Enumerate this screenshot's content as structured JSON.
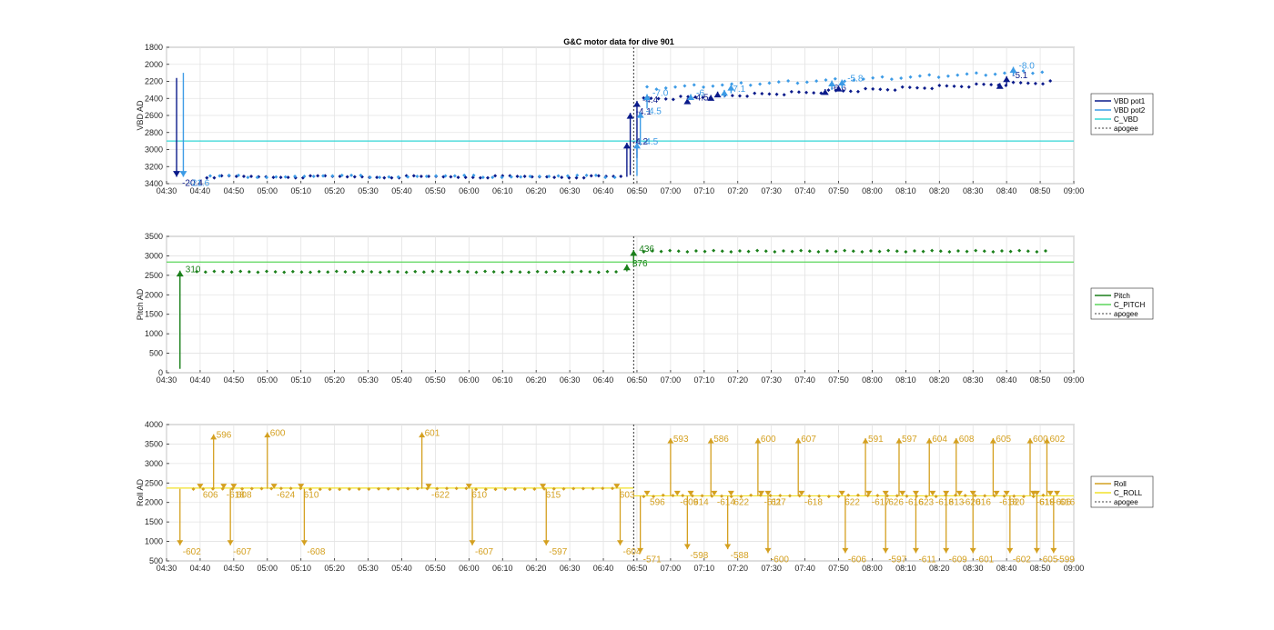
{
  "figure": {
    "title": "G&C motor data for dive 901"
  },
  "x_ticks": [
    "04:30",
    "04:40",
    "04:50",
    "05:00",
    "05:10",
    "05:20",
    "05:30",
    "05:40",
    "05:50",
    "06:00",
    "06:10",
    "06:20",
    "06:30",
    "06:40",
    "06:50",
    "07:00",
    "07:10",
    "07:20",
    "07:30",
    "07:40",
    "07:50",
    "08:00",
    "08:10",
    "08:20",
    "08:30",
    "08:40",
    "08:50",
    "09:00"
  ],
  "chart_data": [
    {
      "type": "scatter",
      "ylabel": "VBD AD",
      "xlim": [
        270,
        540
      ],
      "ylim": [
        1800,
        3400
      ],
      "y_reversed": true,
      "yticks": [
        1800,
        2000,
        2200,
        2400,
        2600,
        2800,
        3000,
        3200,
        3400
      ],
      "grid": true,
      "legend_position": "right",
      "legend": [
        {
          "label": "VBD pot1",
          "color": "#0a1a8a",
          "style": "solid"
        },
        {
          "label": "VBD pot2",
          "color": "#3c9be6",
          "style": "solid"
        },
        {
          "label": "C_VBD",
          "color": "#33d6d6",
          "style": "solid"
        },
        {
          "label": "apogee",
          "color": "#000000",
          "style": "dotted"
        }
      ],
      "reference_line": {
        "label": "C_VBD",
        "y": 2900,
        "color": "#33d6d6"
      },
      "apogee_x": 409,
      "series": [
        {
          "label": "VBD pot1",
          "color": "#0a1a8a",
          "y_dive": 3320,
          "y_climb": 2290,
          "x_dive": [
            282,
            407
          ],
          "x_climb": [
            412,
            533
          ],
          "dx": 2.2
        },
        {
          "label": "VBD pot2",
          "color": "#3c9be6",
          "y_dive": 3315,
          "y_climb": 2160,
          "x_dive": [
            283,
            406
          ],
          "x_climb": [
            413,
            533
          ],
          "dx": 2.8
        }
      ],
      "arrows": [
        {
          "x": 273,
          "y0": 2160,
          "y1": 3320,
          "color": "#0a1a8a",
          "label": "-20.4"
        },
        {
          "x": 275,
          "y0": 2100,
          "y1": 3320,
          "color": "#3c9be6",
          "label": "-21.6"
        },
        {
          "x": 407,
          "y0": 3320,
          "y1": 2920,
          "color": "#0a1a8a",
          "label": "-4.2"
        },
        {
          "x": 408,
          "y0": 3300,
          "y1": 2570,
          "color": "#0a1a8a",
          "label": "-4.1"
        },
        {
          "x": 410,
          "y0": 3100,
          "y1": 2430,
          "color": "#0a1a8a",
          "label": "-4.4"
        },
        {
          "x": 411,
          "y0": 2950,
          "y1": 2560,
          "color": "#3c9be6",
          "label": "-4.5"
        },
        {
          "x": 410,
          "y0": 3310,
          "y1": 2920,
          "color": "#3c9be6",
          "label": "-4.5"
        },
        {
          "x": 413,
          "y0": 2520,
          "y1": 2350,
          "color": "#3c9be6",
          "label": "-7.0"
        },
        {
          "x": 425,
          "y0": 2430,
          "y1": 2400,
          "color": "#0a1a8a",
          "label": "-4.5"
        },
        {
          "x": 426,
          "y0": 2390,
          "y1": 2350,
          "color": "#3c9be6",
          "label": "-6"
        },
        {
          "x": 432,
          "y0": 2390,
          "y1": 2360,
          "color": "#0a1a8a",
          "label": ""
        },
        {
          "x": 436,
          "y0": 2390,
          "y1": 2300,
          "color": "#3c9be6",
          "label": "-7.1"
        },
        {
          "x": 434,
          "y0": 2370,
          "y1": 2320,
          "color": "#0a1a8a",
          "label": ""
        },
        {
          "x": 438,
          "y0": 2340,
          "y1": 2240,
          "color": "#3c9be6",
          "label": ""
        },
        {
          "x": 466,
          "y0": 2330,
          "y1": 2290,
          "color": "#0a1a8a",
          "label": "-6.6"
        },
        {
          "x": 468,
          "y0": 2300,
          "y1": 2190,
          "color": "#3c9be6",
          "label": ""
        },
        {
          "x": 470,
          "y0": 2300,
          "y1": 2250,
          "color": "#0a1a8a",
          "label": ""
        },
        {
          "x": 471,
          "y0": 2280,
          "y1": 2180,
          "color": "#3c9be6",
          "label": "-5.8"
        },
        {
          "x": 518,
          "y0": 2260,
          "y1": 2220,
          "color": "#0a1a8a",
          "label": ""
        },
        {
          "x": 520,
          "y0": 2240,
          "y1": 2140,
          "color": "#0a1a8a",
          "label": "-5.1"
        },
        {
          "x": 522,
          "y0": 2130,
          "y1": 2030,
          "color": "#3c9be6",
          "label": "-8.0"
        }
      ]
    },
    {
      "type": "scatter",
      "ylabel": "Pitch AD",
      "xlim": [
        270,
        540
      ],
      "ylim": [
        0,
        3500
      ],
      "yticks": [
        0,
        500,
        1000,
        1500,
        2000,
        2500,
        3000,
        3500
      ],
      "grid": true,
      "legend_position": "right",
      "legend": [
        {
          "label": "Pitch",
          "color": "#1a7f1a",
          "style": "solid"
        },
        {
          "label": "C_PITCH",
          "color": "#5bd65b",
          "style": "solid"
        },
        {
          "label": "apogee",
          "color": "#000000",
          "style": "dotted"
        }
      ],
      "reference_line": {
        "label": "C_PITCH",
        "y": 2840,
        "color": "#5bd65b"
      },
      "apogee_x": 409,
      "series": [
        {
          "label": "Pitch",
          "color": "#1a7f1a",
          "y_dive": 2590,
          "y_climb": 3120,
          "x_dive": [
            279,
            405
          ],
          "x_climb": [
            412,
            533
          ],
          "dx": 2.6
        }
      ],
      "arrows": [
        {
          "x": 274,
          "y0": 100,
          "y1": 2620,
          "color": "#1a7f1a",
          "label": "310"
        },
        {
          "x": 407,
          "y0": 2600,
          "y1": 2780,
          "color": "#1a7f1a",
          "label": "376"
        },
        {
          "x": 409,
          "y0": 2780,
          "y1": 3150,
          "color": "#1a7f1a",
          "label": "436"
        }
      ]
    },
    {
      "type": "scatter",
      "ylabel": "Roll AD",
      "xlim": [
        270,
        540
      ],
      "ylim": [
        500,
        4000
      ],
      "yticks": [
        500,
        1000,
        1500,
        2000,
        2500,
        3000,
        3500,
        4000
      ],
      "grid": true,
      "legend_position": "right",
      "legend": [
        {
          "label": "Roll",
          "color": "#d4a020",
          "style": "solid"
        },
        {
          "label": "C_ROLL",
          "color": "#f2e22a",
          "style": "solid"
        },
        {
          "label": "apogee",
          "color": "#000000",
          "style": "dotted"
        }
      ],
      "reference_line": {
        "label": "C_ROLL",
        "y_dive": 2370,
        "y_climb": 2170,
        "color": "#f2e22a"
      },
      "apogee_x": 409,
      "series": [
        {
          "label": "Roll",
          "color": "#d4a020",
          "y_dive": 2350,
          "y_climb": 2170,
          "x_dive": [
            278,
            404
          ],
          "x_climb": [
            412,
            533
          ],
          "dx": 2.9
        }
      ],
      "spikes_dive": [
        {
          "x": 274,
          "y": 900,
          "label": "-602"
        },
        {
          "x": 280,
          "y": 2350,
          "label": "606"
        },
        {
          "x": 284,
          "y": 3750,
          "label": "596"
        },
        {
          "x": 287,
          "y": 2350,
          "label": "-618"
        },
        {
          "x": 289,
          "y": 900,
          "label": "-607"
        },
        {
          "x": 290,
          "y": 2350,
          "label": "608"
        },
        {
          "x": 300,
          "y": 3800,
          "label": "600"
        },
        {
          "x": 302,
          "y": 2350,
          "label": "-624"
        },
        {
          "x": 310,
          "y": 2350,
          "label": "610"
        },
        {
          "x": 311,
          "y": 900,
          "label": "-608"
        },
        {
          "x": 346,
          "y": 3800,
          "label": "601"
        },
        {
          "x": 348,
          "y": 2350,
          "label": "-622"
        },
        {
          "x": 360,
          "y": 2350,
          "label": "610"
        },
        {
          "x": 361,
          "y": 900,
          "label": "-607"
        },
        {
          "x": 382,
          "y": 2350,
          "label": "615"
        },
        {
          "x": 383,
          "y": 900,
          "label": "-597"
        },
        {
          "x": 404,
          "y": 2350,
          "label": "603"
        },
        {
          "x": 405,
          "y": 900,
          "label": "-604"
        }
      ],
      "spikes_climb": [
        {
          "x": 411,
          "y": 700,
          "label": "-571"
        },
        {
          "x": 413,
          "y": 2170,
          "label": "596"
        },
        {
          "x": 420,
          "y": 3650,
          "label": "593"
        },
        {
          "x": 422,
          "y": 2170,
          "label": "-609"
        },
        {
          "x": 425,
          "y": 800,
          "label": "-598"
        },
        {
          "x": 426,
          "y": 2170,
          "label": "614"
        },
        {
          "x": 432,
          "y": 3650,
          "label": "586"
        },
        {
          "x": 433,
          "y": 2170,
          "label": "-614"
        },
        {
          "x": 437,
          "y": 800,
          "label": "-588"
        },
        {
          "x": 438,
          "y": 2170,
          "label": "622"
        },
        {
          "x": 446,
          "y": 3650,
          "label": "600"
        },
        {
          "x": 447,
          "y": 2170,
          "label": "-611"
        },
        {
          "x": 449,
          "y": 2170,
          "label": "627"
        },
        {
          "x": 449,
          "y": 700,
          "label": "-600"
        },
        {
          "x": 458,
          "y": 3650,
          "label": "607"
        },
        {
          "x": 459,
          "y": 2170,
          "label": "-618"
        },
        {
          "x": 471,
          "y": 2170,
          "label": "622"
        },
        {
          "x": 472,
          "y": 700,
          "label": "-606"
        },
        {
          "x": 478,
          "y": 3650,
          "label": "591"
        },
        {
          "x": 479,
          "y": 2170,
          "label": "-617"
        },
        {
          "x": 484,
          "y": 2170,
          "label": "626"
        },
        {
          "x": 484,
          "y": 700,
          "label": "-597"
        },
        {
          "x": 488,
          "y": 3650,
          "label": "597"
        },
        {
          "x": 489,
          "y": 2170,
          "label": "-616"
        },
        {
          "x": 493,
          "y": 2170,
          "label": "623"
        },
        {
          "x": 493,
          "y": 700,
          "label": "-611"
        },
        {
          "x": 497,
          "y": 3650,
          "label": "604"
        },
        {
          "x": 498,
          "y": 2170,
          "label": "-618"
        },
        {
          "x": 502,
          "y": 2170,
          "label": "613"
        },
        {
          "x": 502,
          "y": 700,
          "label": "-609"
        },
        {
          "x": 505,
          "y": 3650,
          "label": "608"
        },
        {
          "x": 506,
          "y": 2170,
          "label": "-620"
        },
        {
          "x": 510,
          "y": 2170,
          "label": "616"
        },
        {
          "x": 510,
          "y": 700,
          "label": "-601"
        },
        {
          "x": 516,
          "y": 3650,
          "label": "605"
        },
        {
          "x": 517,
          "y": 2170,
          "label": "-618"
        },
        {
          "x": 520,
          "y": 2170,
          "label": "620"
        },
        {
          "x": 521,
          "y": 700,
          "label": "-602"
        },
        {
          "x": 527,
          "y": 3650,
          "label": "600"
        },
        {
          "x": 528,
          "y": 2170,
          "label": "-619"
        },
        {
          "x": 529,
          "y": 2170,
          "label": "618"
        },
        {
          "x": 529,
          "y": 700,
          "label": "-605"
        },
        {
          "x": 532,
          "y": 3650,
          "label": "602"
        },
        {
          "x": 533,
          "y": 2170,
          "label": "-606"
        },
        {
          "x": 535,
          "y": 2170,
          "label": "616"
        },
        {
          "x": 534,
          "y": 700,
          "label": "-599"
        }
      ]
    }
  ]
}
